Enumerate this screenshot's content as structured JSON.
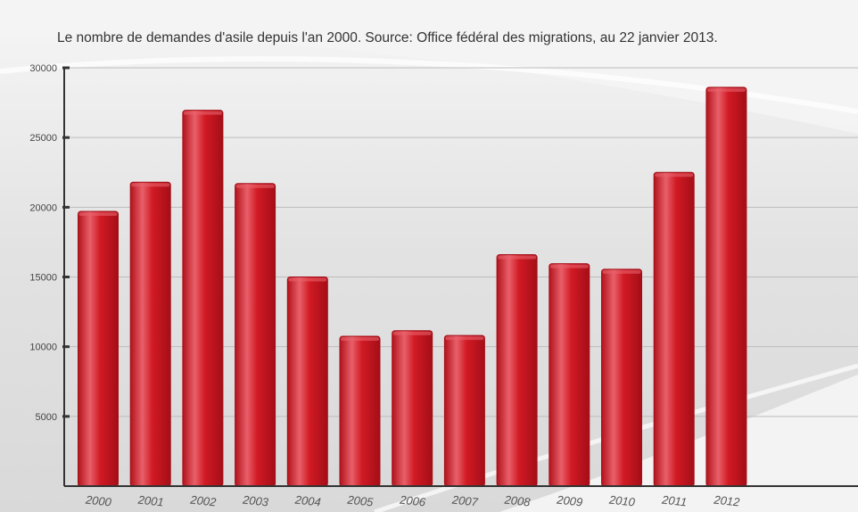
{
  "chart_data": {
    "type": "bar",
    "title": "Le nombre de demandes d'asile depuis l'an 2000. Source: Office fédéral des migrations, au 22 janvier 2013.",
    "xlabel": "",
    "ylabel": "",
    "categories": [
      "2000",
      "2001",
      "2002",
      "2003",
      "2004",
      "2005",
      "2006",
      "2007",
      "2008",
      "2009",
      "2010",
      "2011",
      "2012"
    ],
    "values": [
      19700,
      21800,
      26950,
      21700,
      15000,
      10750,
      11150,
      10800,
      16600,
      15950,
      15550,
      22500,
      28600
    ],
    "ylim": [
      0,
      30000
    ],
    "yticks": [
      5000,
      10000,
      15000,
      20000,
      25000,
      30000
    ],
    "grid": true,
    "legend": "none",
    "colors": {
      "bar": "#d11a24",
      "bar_highlight": "#e8606a",
      "bar_shadow": "#a40e17",
      "grid": "#bdbdbd",
      "axis": "#333333"
    }
  }
}
